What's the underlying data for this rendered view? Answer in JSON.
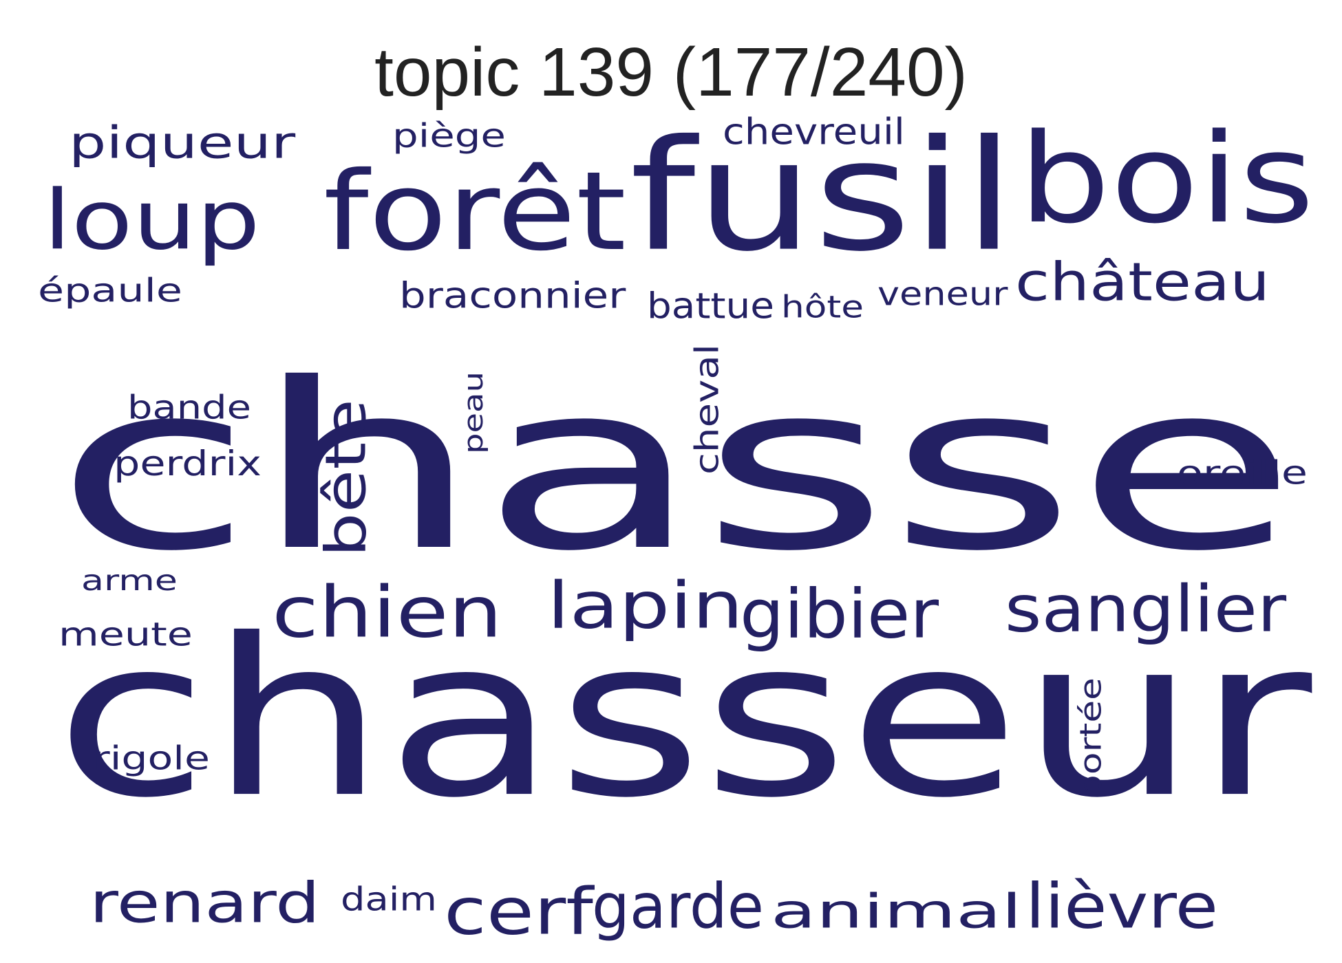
{
  "title": "topic 139 (177/240)",
  "colors": {
    "word": "#232063",
    "title": "#222222",
    "background": "#ffffff"
  },
  "words": [
    {
      "text": "chasse",
      "orientation": "horizontal",
      "rank": 1
    },
    {
      "text": "chasseur",
      "orientation": "horizontal",
      "rank": 2
    },
    {
      "text": "fusil",
      "orientation": "horizontal",
      "rank": 3
    },
    {
      "text": "bois",
      "orientation": "horizontal",
      "rank": 4
    },
    {
      "text": "forêt",
      "orientation": "horizontal",
      "rank": 5
    },
    {
      "text": "loup",
      "orientation": "horizontal",
      "rank": 6
    },
    {
      "text": "chien",
      "orientation": "horizontal",
      "rank": 7
    },
    {
      "text": "sanglier",
      "orientation": "horizontal",
      "rank": 8
    },
    {
      "text": "lièvre",
      "orientation": "horizontal",
      "rank": 9
    },
    {
      "text": "gibier",
      "orientation": "horizontal",
      "rank": 10
    },
    {
      "text": "animal",
      "orientation": "horizontal",
      "rank": 11
    },
    {
      "text": "lapin",
      "orientation": "horizontal",
      "rank": 12
    },
    {
      "text": "renard",
      "orientation": "horizontal",
      "rank": 13
    },
    {
      "text": "garde",
      "orientation": "horizontal",
      "rank": 14
    },
    {
      "text": "château",
      "orientation": "horizontal",
      "rank": 15
    },
    {
      "text": "cerf",
      "orientation": "horizontal",
      "rank": 16
    },
    {
      "text": "bête",
      "orientation": "vertical",
      "rank": 17
    },
    {
      "text": "piqueur",
      "orientation": "horizontal",
      "rank": 18
    },
    {
      "text": "braconnier",
      "orientation": "horizontal",
      "rank": 19
    },
    {
      "text": "battue",
      "orientation": "horizontal",
      "rank": 20
    },
    {
      "text": "chevreuil",
      "orientation": "horizontal",
      "rank": 21
    },
    {
      "text": "perdrix",
      "orientation": "horizontal",
      "rank": 22
    },
    {
      "text": "bande",
      "orientation": "horizontal",
      "rank": 23
    },
    {
      "text": "oreille",
      "orientation": "horizontal",
      "rank": 24
    },
    {
      "text": "cheval",
      "orientation": "vertical",
      "rank": 25
    },
    {
      "text": "veneur",
      "orientation": "horizontal",
      "rank": 26
    },
    {
      "text": "meute",
      "orientation": "horizontal",
      "rank": 27
    },
    {
      "text": "piège",
      "orientation": "horizontal",
      "rank": 28
    },
    {
      "text": "épaule",
      "orientation": "horizontal",
      "rank": 29
    },
    {
      "text": "rigole",
      "orientation": "horizontal",
      "rank": 30
    },
    {
      "text": "daim",
      "orientation": "horizontal",
      "rank": 31
    },
    {
      "text": "hôte",
      "orientation": "horizontal",
      "rank": 32
    },
    {
      "text": "portée",
      "orientation": "vertical",
      "rank": 33
    },
    {
      "text": "peau",
      "orientation": "vertical",
      "rank": 34
    },
    {
      "text": "arme",
      "orientation": "horizontal",
      "rank": 35
    }
  ]
}
